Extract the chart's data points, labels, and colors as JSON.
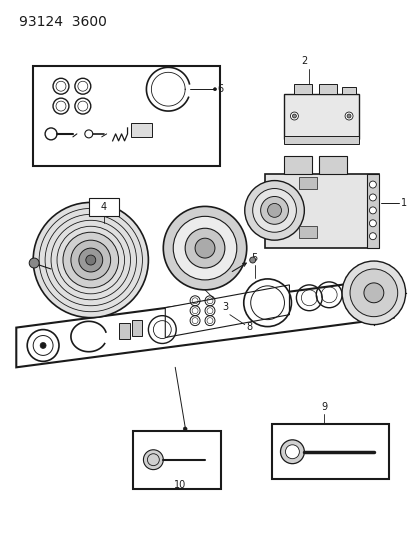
{
  "title": "93124  3600",
  "bg_color": "#ffffff",
  "line_color": "#1a1a1a",
  "figsize": [
    4.14,
    5.33
  ],
  "dpi": 100,
  "title_fontsize": 10,
  "label_fontsize": 7
}
